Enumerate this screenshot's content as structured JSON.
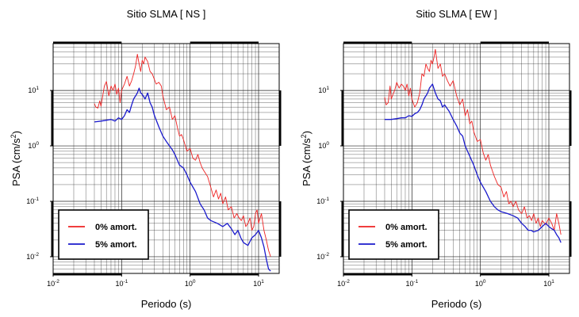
{
  "chart_data": [
    {
      "type": "line",
      "title": "Sitio SLMA [ NS ]",
      "xlabel": "Periodo (s)",
      "ylabel": "PSA (cm/s",
      "ylabel_sup": "2",
      "ylabel_close": ")",
      "xscale": "log",
      "yscale": "log",
      "xlim": [
        0.01,
        20
      ],
      "ylim": [
        0.005,
        70
      ],
      "grid": true,
      "legend_position": "bottom-left",
      "x_ticks": [
        {
          "base": "10",
          "exp": "-2"
        },
        {
          "base": "10",
          "exp": "-1"
        },
        {
          "base": "10",
          "exp": "0"
        },
        {
          "base": "10",
          "exp": "1"
        }
      ],
      "y_ticks": [
        {
          "base": "10",
          "exp": "-2"
        },
        {
          "base": "10",
          "exp": "-1"
        },
        {
          "base": "10",
          "exp": "0"
        },
        {
          "base": "10",
          "exp": "1"
        }
      ],
      "series": [
        {
          "name": "0% amort.",
          "color": "#ee2222",
          "x": [
            0.04,
            0.042,
            0.045,
            0.048,
            0.05,
            0.053,
            0.056,
            0.06,
            0.065,
            0.07,
            0.075,
            0.08,
            0.085,
            0.09,
            0.095,
            0.1,
            0.11,
            0.12,
            0.13,
            0.14,
            0.15,
            0.16,
            0.17,
            0.18,
            0.19,
            0.2,
            0.21,
            0.22,
            0.24,
            0.26,
            0.28,
            0.3,
            0.32,
            0.35,
            0.38,
            0.4,
            0.45,
            0.5,
            0.55,
            0.6,
            0.65,
            0.7,
            0.75,
            0.8,
            0.9,
            1.0,
            1.1,
            1.2,
            1.3,
            1.4,
            1.5,
            1.6,
            1.8,
            2.0,
            2.2,
            2.4,
            2.6,
            2.8,
            3.0,
            3.3,
            3.6,
            4.0,
            4.4,
            4.8,
            5.2,
            5.6,
            6.0,
            6.5,
            7.0,
            7.5,
            8.0,
            8.5,
            9.0,
            9.5,
            10.0,
            11.0,
            12.0,
            13.0,
            14.0,
            15.0
          ],
          "y": [
            5.8,
            5.0,
            4.8,
            6.5,
            5.2,
            8.0,
            12.0,
            14.5,
            8.0,
            12.0,
            10.0,
            13.0,
            8.5,
            11.0,
            6.0,
            10.0,
            13.0,
            18.0,
            12.0,
            15.0,
            20.0,
            28.0,
            45.0,
            30.0,
            22.0,
            35.0,
            30.0,
            40.0,
            33.0,
            22.0,
            20.0,
            16.0,
            13.0,
            14.0,
            12.0,
            8.0,
            4.5,
            5.0,
            3.0,
            3.5,
            2.2,
            1.5,
            1.6,
            1.3,
            0.8,
            0.9,
            0.6,
            0.55,
            0.7,
            0.5,
            0.4,
            0.35,
            0.28,
            0.18,
            0.12,
            0.16,
            0.11,
            0.14,
            0.09,
            0.12,
            0.07,
            0.08,
            0.05,
            0.06,
            0.05,
            0.045,
            0.055,
            0.035,
            0.04,
            0.05,
            0.03,
            0.035,
            0.06,
            0.07,
            0.04,
            0.06,
            0.03,
            0.02,
            0.013,
            0.01
          ]
        },
        {
          "name": "5% amort.",
          "color": "#1a1acc",
          "x": [
            0.04,
            0.05,
            0.06,
            0.07,
            0.08,
            0.09,
            0.1,
            0.11,
            0.12,
            0.13,
            0.14,
            0.15,
            0.16,
            0.17,
            0.18,
            0.19,
            0.2,
            0.22,
            0.24,
            0.26,
            0.28,
            0.3,
            0.35,
            0.4,
            0.45,
            0.5,
            0.55,
            0.6,
            0.7,
            0.8,
            0.9,
            1.0,
            1.2,
            1.4,
            1.6,
            1.8,
            2.0,
            2.5,
            3.0,
            3.5,
            4.0,
            4.5,
            5.0,
            5.5,
            6.0,
            7.0,
            8.0,
            9.0,
            10.0,
            11.0,
            12.0,
            13.0,
            14.0,
            15.0
          ],
          "y": [
            2.7,
            2.8,
            2.9,
            3.0,
            2.8,
            3.2,
            3.0,
            3.5,
            4.5,
            4.0,
            5.5,
            7.0,
            8.0,
            9.0,
            11.0,
            9.0,
            8.5,
            7.0,
            9.0,
            6.0,
            5.0,
            3.6,
            2.2,
            1.5,
            1.2,
            1.0,
            0.85,
            0.7,
            0.45,
            0.4,
            0.3,
            0.22,
            0.15,
            0.09,
            0.07,
            0.05,
            0.045,
            0.04,
            0.035,
            0.04,
            0.032,
            0.025,
            0.03,
            0.022,
            0.018,
            0.016,
            0.022,
            0.025,
            0.03,
            0.022,
            0.015,
            0.009,
            0.006,
            0.0055
          ]
        }
      ]
    },
    {
      "type": "line",
      "title": "Sitio SLMA [ EW ]",
      "xlabel": "Periodo (s)",
      "ylabel": "PSA (cm/s",
      "ylabel_sup": "2",
      "ylabel_close": ")",
      "xscale": "log",
      "yscale": "log",
      "xlim": [
        0.01,
        20
      ],
      "ylim": [
        0.005,
        70
      ],
      "grid": true,
      "legend_position": "bottom-left",
      "x_ticks": [
        {
          "base": "10",
          "exp": "-2"
        },
        {
          "base": "10",
          "exp": "-1"
        },
        {
          "base": "10",
          "exp": "0"
        },
        {
          "base": "10",
          "exp": "1"
        }
      ],
      "y_ticks": [
        {
          "base": "10",
          "exp": "-2"
        },
        {
          "base": "10",
          "exp": "-1"
        },
        {
          "base": "10",
          "exp": "0"
        },
        {
          "base": "10",
          "exp": "1"
        }
      ],
      "series": [
        {
          "name": "0% amort.",
          "color": "#ee2222",
          "x": [
            0.04,
            0.042,
            0.045,
            0.048,
            0.05,
            0.053,
            0.056,
            0.06,
            0.065,
            0.07,
            0.075,
            0.08,
            0.085,
            0.09,
            0.095,
            0.1,
            0.11,
            0.12,
            0.13,
            0.14,
            0.15,
            0.16,
            0.17,
            0.18,
            0.19,
            0.2,
            0.21,
            0.22,
            0.24,
            0.26,
            0.28,
            0.3,
            0.33,
            0.36,
            0.4,
            0.45,
            0.5,
            0.55,
            0.6,
            0.65,
            0.7,
            0.75,
            0.8,
            0.9,
            1.0,
            1.1,
            1.2,
            1.3,
            1.4,
            1.5,
            1.6,
            1.8,
            2.0,
            2.2,
            2.4,
            2.6,
            2.8,
            3.0,
            3.3,
            3.6,
            4.0,
            4.4,
            4.8,
            5.2,
            5.6,
            6.0,
            6.5,
            7.0,
            7.5,
            8.0,
            9.0,
            10.0,
            11.0,
            12.0,
            13.0,
            14.0,
            15.0
          ],
          "y": [
            7.5,
            5.5,
            6.0,
            12.0,
            7.0,
            8.5,
            10.0,
            14.0,
            11.0,
            13.0,
            12.0,
            10.0,
            13.0,
            8.0,
            11.0,
            7.0,
            5.0,
            6.0,
            9.0,
            20.0,
            18.0,
            30.0,
            25.0,
            22.0,
            35.0,
            30.0,
            40.0,
            55.0,
            25.0,
            30.0,
            18.0,
            20.0,
            15.0,
            12.0,
            15.0,
            8.0,
            5.5,
            7.0,
            3.5,
            4.5,
            2.5,
            2.8,
            1.8,
            1.2,
            1.3,
            0.75,
            0.55,
            0.7,
            0.45,
            0.35,
            0.28,
            0.2,
            0.18,
            0.12,
            0.15,
            0.09,
            0.1,
            0.08,
            0.1,
            0.07,
            0.06,
            0.08,
            0.05,
            0.055,
            0.045,
            0.06,
            0.04,
            0.05,
            0.035,
            0.045,
            0.038,
            0.05,
            0.04,
            0.03,
            0.06,
            0.04,
            0.025
          ]
        },
        {
          "name": "5% amort.",
          "color": "#1a1acc",
          "x": [
            0.04,
            0.05,
            0.06,
            0.07,
            0.08,
            0.09,
            0.1,
            0.11,
            0.12,
            0.13,
            0.14,
            0.15,
            0.16,
            0.17,
            0.18,
            0.19,
            0.2,
            0.22,
            0.24,
            0.26,
            0.28,
            0.3,
            0.35,
            0.4,
            0.45,
            0.5,
            0.55,
            0.6,
            0.7,
            0.8,
            0.9,
            1.0,
            1.2,
            1.4,
            1.6,
            1.8,
            2.0,
            2.5,
            3.0,
            3.5,
            4.0,
            4.5,
            5.0,
            5.5,
            6.0,
            7.0,
            8.0,
            9.0,
            10.0,
            11.0,
            12.0,
            13.0,
            14.0,
            15.0
          ],
          "y": [
            3.0,
            3.0,
            3.1,
            3.2,
            3.2,
            3.5,
            3.4,
            3.8,
            4.0,
            4.5,
            5.5,
            7.0,
            8.0,
            9.0,
            11.0,
            12.0,
            13.0,
            9.0,
            7.0,
            6.5,
            5.0,
            5.5,
            4.2,
            3.0,
            2.3,
            1.7,
            1.5,
            1.0,
            0.65,
            0.45,
            0.3,
            0.22,
            0.15,
            0.1,
            0.08,
            0.07,
            0.065,
            0.06,
            0.055,
            0.05,
            0.04,
            0.035,
            0.03,
            0.03,
            0.028,
            0.03,
            0.035,
            0.04,
            0.035,
            0.032,
            0.03,
            0.025,
            0.022,
            0.018
          ]
        }
      ]
    }
  ]
}
